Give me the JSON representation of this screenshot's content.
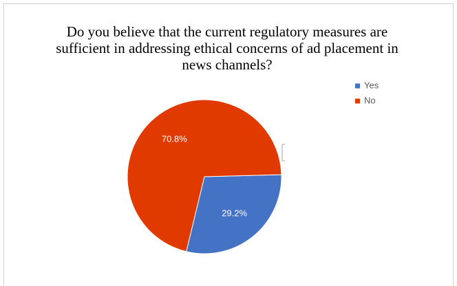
{
  "chart_data": {
    "type": "pie",
    "title": "Do you believe that the current regulatory measures are sufficient in addressing ethical concerns of ad placement in news channels?",
    "categories": [
      "Yes",
      "No"
    ],
    "values": [
      29.2,
      70.8
    ],
    "value_labels": [
      "29.2%",
      "70.8%"
    ],
    "colors": [
      "#4472c4",
      "#e03a00"
    ],
    "legend": "top-right"
  }
}
